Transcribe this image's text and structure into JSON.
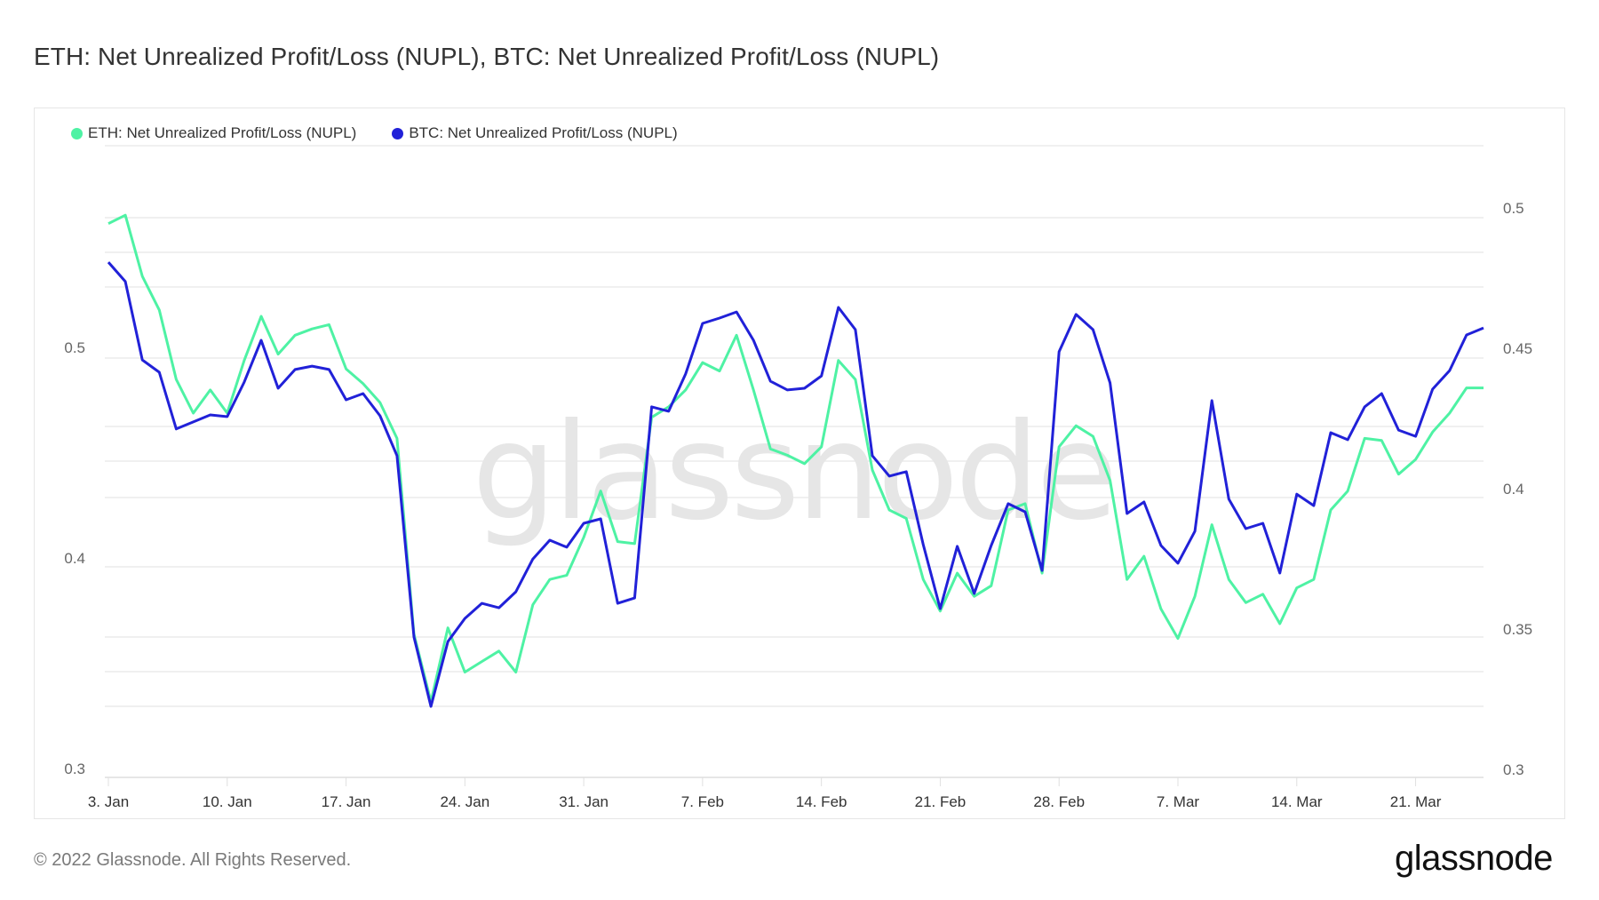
{
  "title": "ETH: Net Unrealized Profit/Loss (NUPL), BTC: Net Unrealized Profit/Loss (NUPL)",
  "legend": [
    {
      "label": "ETH: Net Unrealized Profit/Loss (NUPL)",
      "color": "#4ef2a4"
    },
    {
      "label": "BTC: Net Unrealized Profit/Loss (NUPL)",
      "color": "#2121d8"
    }
  ],
  "watermark": "glassnode",
  "footer": {
    "copyright": "© 2022 Glassnode. All Rights Reserved.",
    "logo": "glassnode"
  },
  "colors": {
    "eth": "#4ef2a4",
    "btc": "#2121d8",
    "grid": "#ebebeb",
    "axis_text": "#666666",
    "watermark": "#e6e6e6"
  },
  "chart_data": {
    "type": "line",
    "title": "ETH: Net Unrealized Profit/Loss (NUPL), BTC: Net Unrealized Profit/Loss (NUPL)",
    "xlabel": "",
    "ylabel_left": "",
    "ylabel_right": "",
    "x_start": "2022-01-03",
    "x_end": "2022-03-25",
    "x_ticks": [
      "3. Jan",
      "10. Jan",
      "17. Jan",
      "24. Jan",
      "31. Jan",
      "7. Feb",
      "14. Feb",
      "21. Feb",
      "28. Feb",
      "7. Mar",
      "14. Mar",
      "21. Mar"
    ],
    "y_left": {
      "ticks": [
        0.3,
        0.4,
        0.5
      ],
      "range": [
        0.3,
        0.6
      ],
      "series": "ETH: Net Unrealized Profit/Loss (NUPL)"
    },
    "y_right": {
      "ticks": [
        0.3,
        0.35,
        0.4,
        0.45,
        0.5
      ],
      "range": [
        0.3,
        0.525
      ],
      "series": "BTC: Net Unrealized Profit/Loss (NUPL)"
    },
    "grid": true,
    "legend_position": "top-left",
    "series": [
      {
        "name": "ETH: Net Unrealized Profit/Loss (NUPL)",
        "axis": "left",
        "color": "#4ef2a4",
        "values": [
          0.563,
          0.567,
          0.538,
          0.522,
          0.489,
          0.473,
          0.484,
          0.473,
          0.498,
          0.519,
          0.501,
          0.51,
          0.513,
          0.515,
          0.494,
          0.487,
          0.478,
          0.461,
          0.368,
          0.336,
          0.371,
          0.35,
          0.355,
          0.36,
          0.35,
          0.382,
          0.394,
          0.396,
          0.414,
          0.436,
          0.412,
          0.411,
          0.471,
          0.476,
          0.484,
          0.497,
          0.493,
          0.51,
          0.484,
          0.456,
          0.453,
          0.449,
          0.457,
          0.498,
          0.489,
          0.446,
          0.427,
          0.423,
          0.394,
          0.379,
          0.397,
          0.386,
          0.391,
          0.427,
          0.43,
          0.397,
          0.457,
          0.467,
          0.462,
          0.441,
          0.394,
          0.405,
          0.38,
          0.366,
          0.386,
          0.42,
          0.394,
          0.383,
          0.387,
          0.373,
          0.39,
          0.394,
          0.427,
          0.436,
          0.461,
          0.46,
          0.444,
          0.451,
          0.464,
          0.473,
          0.485,
          0.485
        ]
      },
      {
        "name": "BTC: Net Unrealized Profit/Loss (NUPL)",
        "axis": "right",
        "color": "#2121d8",
        "values": [
          0.4835,
          0.4766,
          0.4487,
          0.4443,
          0.4241,
          0.4266,
          0.4291,
          0.4285,
          0.4408,
          0.4557,
          0.4386,
          0.4453,
          0.4465,
          0.4453,
          0.4345,
          0.4367,
          0.4288,
          0.4146,
          0.35,
          0.3253,
          0.3484,
          0.3566,
          0.362,
          0.3604,
          0.3661,
          0.3778,
          0.3845,
          0.382,
          0.3905,
          0.3921,
          0.362,
          0.3639,
          0.432,
          0.4304,
          0.4437,
          0.4617,
          0.4636,
          0.4658,
          0.4557,
          0.4411,
          0.438,
          0.4386,
          0.443,
          0.4674,
          0.4595,
          0.4146,
          0.4073,
          0.4089,
          0.3829,
          0.3601,
          0.3823,
          0.3655,
          0.3826,
          0.3975,
          0.3946,
          0.3737,
          0.4516,
          0.4649,
          0.4595,
          0.4405,
          0.394,
          0.3981,
          0.3826,
          0.3763,
          0.3877,
          0.4342,
          0.3991,
          0.3886,
          0.3905,
          0.3728,
          0.4009,
          0.3968,
          0.4228,
          0.4203,
          0.432,
          0.4367,
          0.4237,
          0.4215,
          0.4383,
          0.4449,
          0.4576,
          0.4601
        ]
      }
    ]
  }
}
